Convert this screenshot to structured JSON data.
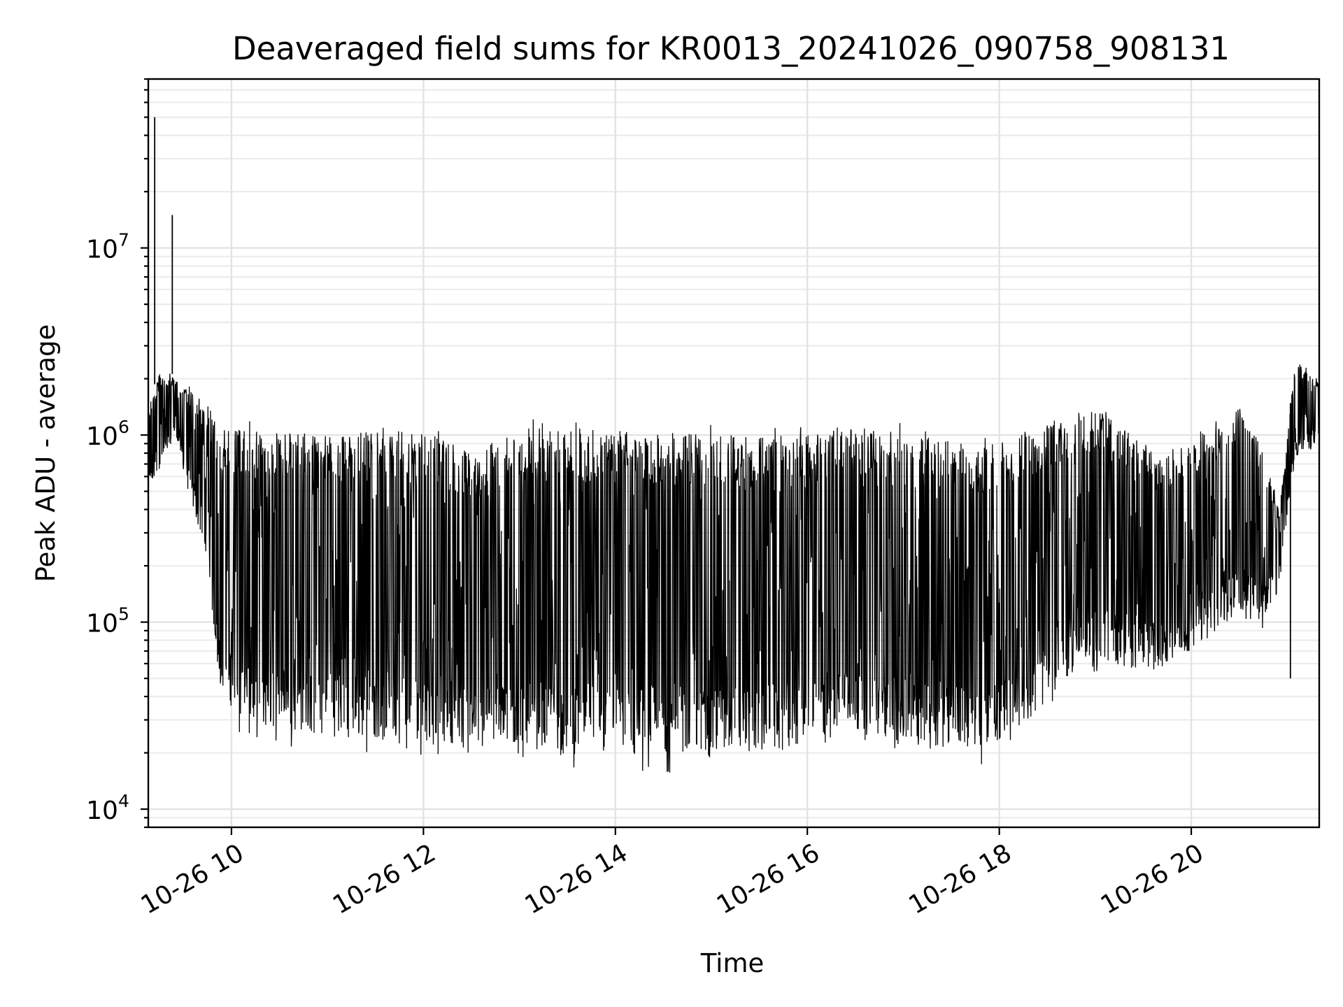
{
  "chart_data": {
    "type": "line",
    "title": "Deaveraged field sums for KR0013_20241026_090758_908131",
    "xlabel": "Time",
    "ylabel": "Peak ADU - average",
    "yscale": "log",
    "xlim": [
      "2024-10-26 09:08",
      "2024-10-26 21:20"
    ],
    "ylim": [
      8000,
      80000000
    ],
    "grid": true,
    "line_color": "#000000",
    "x_ticks": [
      {
        "value": "2024-10-26 10:00",
        "label": "10-26 10"
      },
      {
        "value": "2024-10-26 12:00",
        "label": "10-26 12"
      },
      {
        "value": "2024-10-26 14:00",
        "label": "10-26 14"
      },
      {
        "value": "2024-10-26 16:00",
        "label": "10-26 16"
      },
      {
        "value": "2024-10-26 18:00",
        "label": "10-26 18"
      },
      {
        "value": "2024-10-26 20:00",
        "label": "10-26 20"
      }
    ],
    "y_ticks": [
      {
        "value": 10000,
        "base": "10",
        "exp": "4"
      },
      {
        "value": 100000,
        "base": "10",
        "exp": "5"
      },
      {
        "value": 1000000,
        "base": "10",
        "exp": "6"
      },
      {
        "value": 10000000,
        "base": "10",
        "exp": "7"
      }
    ],
    "series_envelope": {
      "description_free": true,
      "points": [
        {
          "t": "2024-10-26 09:08",
          "low": 450000,
          "high": 1500000
        },
        {
          "t": "2024-10-26 09:15",
          "low": 600000,
          "high": 2200000
        },
        {
          "t": "2024-10-26 09:25",
          "low": 1000000,
          "high": 2100000
        },
        {
          "t": "2024-10-26 09:35",
          "low": 400000,
          "high": 1800000
        },
        {
          "t": "2024-10-26 09:45",
          "low": 200000,
          "high": 1600000
        },
        {
          "t": "2024-10-26 09:52",
          "low": 40000,
          "high": 1200000
        },
        {
          "t": "2024-10-26 10:05",
          "low": 24000,
          "high": 1200000
        },
        {
          "t": "2024-10-26 11:00",
          "low": 20000,
          "high": 1150000
        },
        {
          "t": "2024-10-26 12:00",
          "low": 19000,
          "high": 1200000
        },
        {
          "t": "2024-10-26 12:30",
          "low": 18000,
          "high": 900000
        },
        {
          "t": "2024-10-26 13:00",
          "low": 17000,
          "high": 1250000
        },
        {
          "t": "2024-10-26 14:00",
          "low": 16000,
          "high": 1200000
        },
        {
          "t": "2024-10-26 15:00",
          "low": 15000,
          "high": 1150000
        },
        {
          "t": "2024-10-26 15:50",
          "low": 17000,
          "high": 1100000
        },
        {
          "t": "2024-10-26 16:30",
          "low": 22000,
          "high": 1300000
        },
        {
          "t": "2024-10-26 17:00",
          "low": 18000,
          "high": 1150000
        },
        {
          "t": "2024-10-26 17:50",
          "low": 17000,
          "high": 1000000
        },
        {
          "t": "2024-10-26 18:20",
          "low": 25000,
          "high": 1200000
        },
        {
          "t": "2024-10-26 18:50",
          "low": 50000,
          "high": 1500000
        },
        {
          "t": "2024-10-26 19:10",
          "low": 50000,
          "high": 1500000
        },
        {
          "t": "2024-10-26 19:40",
          "low": 48000,
          "high": 800000
        },
        {
          "t": "2024-10-26 20:00",
          "low": 60000,
          "high": 1000000
        },
        {
          "t": "2024-10-26 20:30",
          "low": 100000,
          "high": 1500000
        },
        {
          "t": "2024-10-26 20:45",
          "low": 90000,
          "high": 900000
        },
        {
          "t": "2024-10-26 20:55",
          "low": 150000,
          "high": 400000
        },
        {
          "t": "2024-10-26 21:05",
          "low": 700000,
          "high": 2600000
        },
        {
          "t": "2024-10-26 21:20",
          "low": 900000,
          "high": 2000000
        }
      ]
    },
    "spikes": [
      {
        "t": "2024-10-26 09:12",
        "value": 50000000
      },
      {
        "t": "2024-10-26 09:23",
        "value": 15000000
      },
      {
        "t": "2024-10-26 21:02",
        "value": 50000
      }
    ]
  }
}
